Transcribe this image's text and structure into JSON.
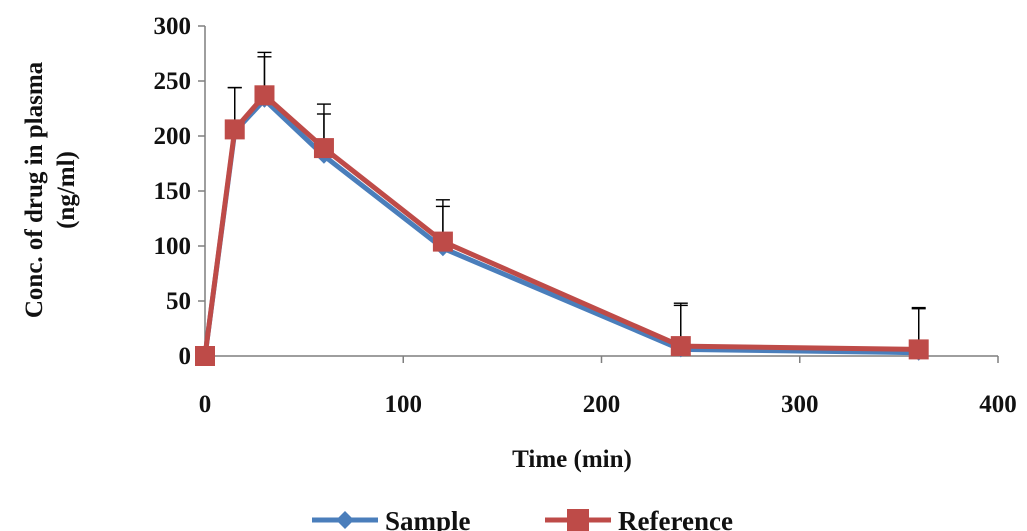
{
  "chart_data": {
    "type": "line",
    "title": "",
    "xlabel": "Time (min)",
    "ylabel_line1": "Conc. of drug in plasma",
    "ylabel_line2": "(ng/ml)",
    "xlim": [
      0,
      400
    ],
    "ylim": [
      0,
      300
    ],
    "xticks": [
      0,
      100,
      200,
      300,
      400
    ],
    "yticks": [
      0,
      50,
      100,
      150,
      200,
      250,
      300
    ],
    "grid": false,
    "legend_position": "bottom",
    "x": [
      0,
      15,
      30,
      60,
      120,
      240,
      360
    ],
    "series": [
      {
        "name": "Sample",
        "marker": "diamond",
        "color": "#4a7ebb",
        "values": [
          0,
          204,
          233,
          182,
          98,
          6,
          3
        ],
        "error": [
          0,
          40,
          39,
          38,
          38,
          40,
          40
        ]
      },
      {
        "name": "Reference",
        "marker": "square",
        "color": "#be4b48",
        "values": [
          0,
          206,
          237,
          189,
          104,
          9,
          6
        ],
        "error": [
          0,
          38,
          39,
          40,
          38,
          39,
          38
        ]
      }
    ]
  }
}
